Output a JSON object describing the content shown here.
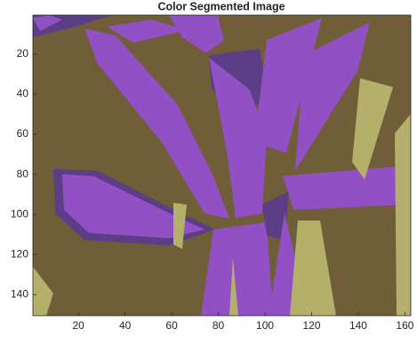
{
  "chart_data": {
    "type": "image",
    "title": "Color Segmented Image",
    "xlim": [
      0.5,
      162.5
    ],
    "ylim": [
      0.5,
      150.5
    ],
    "y_reversed": true,
    "xticks": [
      20,
      40,
      60,
      80,
      100,
      120,
      140,
      160
    ],
    "yticks": [
      20,
      40,
      60,
      80,
      100,
      120,
      140
    ]
  }
}
